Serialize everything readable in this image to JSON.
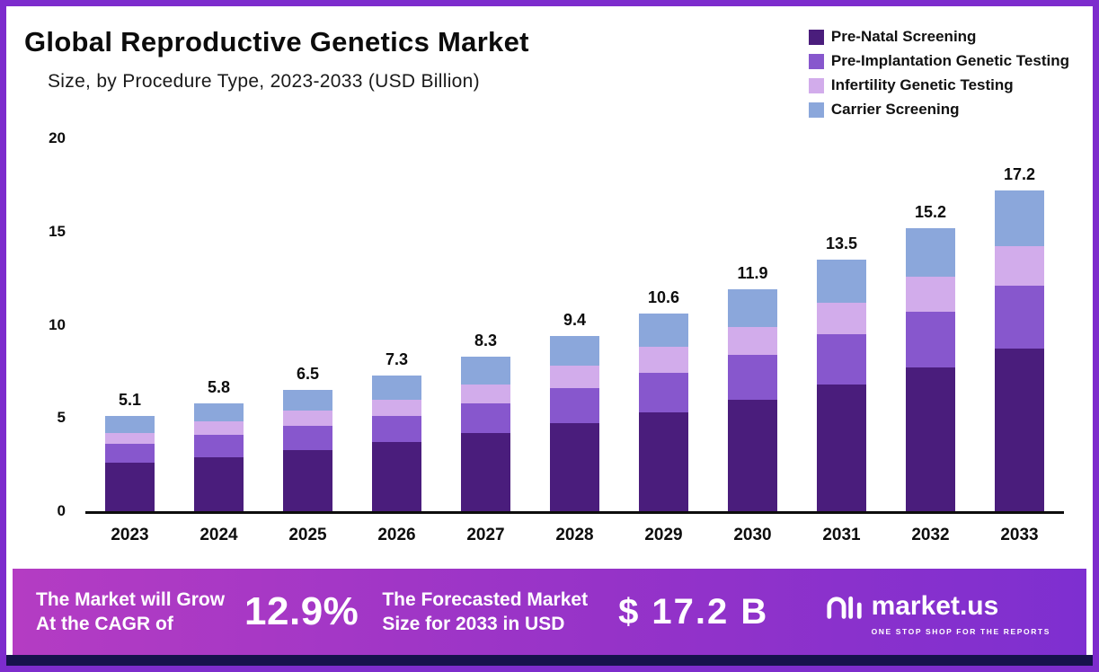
{
  "title": "Global Reproductive Genetics Market",
  "subtitle": "Size, by Procedure Type, 2023-2033 (USD Billion)",
  "legend": [
    {
      "label": "Pre-Natal Screening",
      "color": "#4a1d7c"
    },
    {
      "label": "Pre-Implantation Genetic Testing",
      "color": "#8757cd"
    },
    {
      "label": "Infertility Genetic Testing",
      "color": "#d2aceb"
    },
    {
      "label": "Carrier Screening",
      "color": "#8ba7db"
    }
  ],
  "chart_data": {
    "type": "bar",
    "stacked": true,
    "title": "Global Reproductive Genetics Market Size, by Procedure Type, 2023-2033 (USD Billion)",
    "categories": [
      "2023",
      "2024",
      "2025",
      "2026",
      "2027",
      "2028",
      "2029",
      "2030",
      "2031",
      "2032",
      "2033"
    ],
    "totals": [
      5.1,
      5.8,
      6.5,
      7.3,
      8.3,
      9.4,
      10.6,
      11.9,
      13.5,
      15.2,
      17.2
    ],
    "series": [
      {
        "name": "Pre-Natal Screening",
        "color": "#4a1d7c",
        "values": [
          2.6,
          2.9,
          3.3,
          3.7,
          4.2,
          4.7,
          5.3,
          6.0,
          6.8,
          7.7,
          8.7
        ]
      },
      {
        "name": "Pre-Implantation Genetic Testing",
        "color": "#8757cd",
        "values": [
          1.0,
          1.2,
          1.3,
          1.4,
          1.6,
          1.9,
          2.1,
          2.4,
          2.7,
          3.0,
          3.4
        ]
      },
      {
        "name": "Infertility Genetic Testing",
        "color": "#d2aceb",
        "values": [
          0.6,
          0.7,
          0.8,
          0.9,
          1.0,
          1.2,
          1.4,
          1.5,
          1.7,
          1.9,
          2.1
        ]
      },
      {
        "name": "Carrier Screening",
        "color": "#8ba7db",
        "values": [
          0.9,
          1.0,
          1.1,
          1.3,
          1.5,
          1.6,
          1.8,
          2.0,
          2.3,
          2.6,
          3.0
        ]
      }
    ],
    "xlabel": "",
    "ylabel": "",
    "ylim": [
      0,
      20
    ],
    "yticks": [
      0,
      5,
      10,
      15,
      20
    ],
    "grid": false,
    "legend_position": "top-right"
  },
  "banner": {
    "grow_line1": "The Market will Grow",
    "grow_line2": "At the CAGR of",
    "cagr_value": "12.9%",
    "forecast_line1": "The Forecasted Market",
    "forecast_line2": "Size for 2033 in USD",
    "forecast_value": "$ 17.2 B",
    "logo_text": "market.us",
    "logo_tagline": "ONE STOP SHOP FOR THE REPORTS"
  },
  "colors": {
    "frame_border": "#7d2ccd",
    "banner_gradient_start": "#b43cc3",
    "banner_gradient_end": "#7e2fd0",
    "footer_strip": "#17124d"
  }
}
